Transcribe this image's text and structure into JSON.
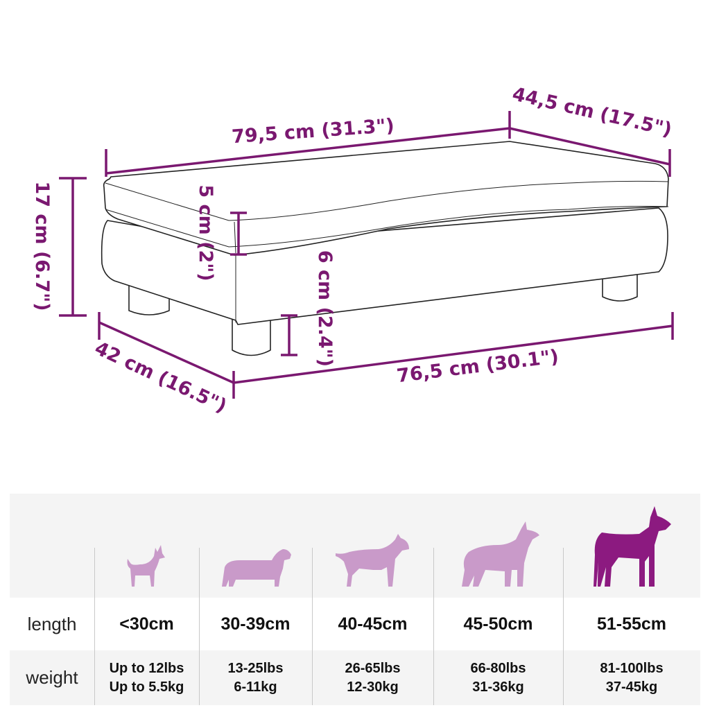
{
  "dimensions": {
    "top_width": "79,5 cm (31.3\")",
    "top_depth": "44,5 cm (17.5\")",
    "height": "17 cm (6.7\")",
    "cushion_height": "5 cm (2\")",
    "leg_height": "6 cm (2.4\")",
    "bottom_depth": "42 cm (16.5\")",
    "bottom_width": "76,5 cm (30.1\")"
  },
  "colors": {
    "dimension": "#7a1870",
    "dog_light": "#c99ac9",
    "dog_dark": "#8c1a80"
  },
  "size_table": {
    "row_labels": {
      "length": "length",
      "weight": "weight"
    },
    "columns": [
      {
        "dog_icon": "chihuahua-icon",
        "length": "<30cm",
        "weight_lbs": "Up to 12lbs",
        "weight_kg": "Up to 5.5kg",
        "highlighted": false
      },
      {
        "dog_icon": "dachshund-icon",
        "length": "30-39cm",
        "weight_lbs": "13-25lbs",
        "weight_kg": "6-11kg",
        "highlighted": false
      },
      {
        "dog_icon": "bull-terrier-icon",
        "length": "40-45cm",
        "weight_lbs": "26-65lbs",
        "weight_kg": "12-30kg",
        "highlighted": false
      },
      {
        "dog_icon": "shepherd-icon",
        "length": "45-50cm",
        "weight_lbs": "66-80lbs",
        "weight_kg": "31-36kg",
        "highlighted": false
      },
      {
        "dog_icon": "great-dane-icon",
        "length": "51-55cm",
        "weight_lbs": "81-100lbs",
        "weight_kg": "37-45kg",
        "highlighted": true
      }
    ]
  }
}
